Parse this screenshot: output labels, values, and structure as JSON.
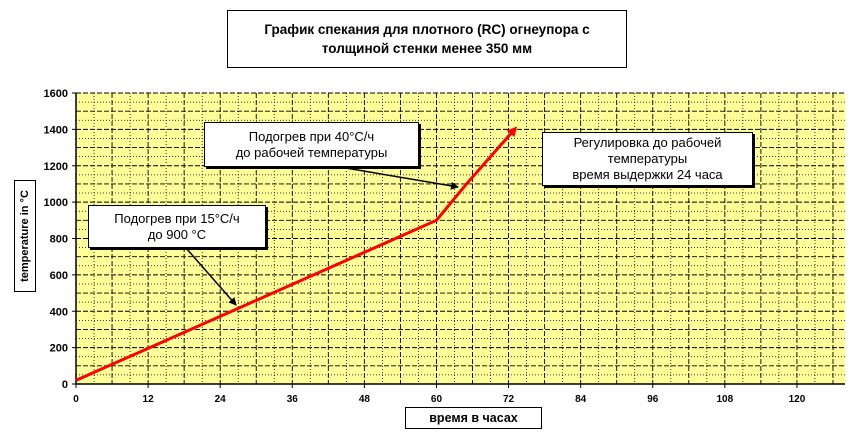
{
  "chart_data": {
    "type": "line",
    "title": "График спекания для плотного (RC) огнеупора с толщиной стенки менее 350 мм",
    "xlabel": "время в часах",
    "ylabel": "temperature in °C",
    "xlim": [
      0,
      128
    ],
    "ylim": [
      0,
      1600
    ],
    "xticks": [
      "0",
      "12",
      "24",
      "36",
      "48",
      "60",
      "72",
      "84",
      "96",
      "108",
      "120"
    ],
    "yticks": [
      "0",
      "200",
      "400",
      "600",
      "800",
      "1000",
      "1200",
      "1400",
      "1600"
    ],
    "grid": true,
    "background": "#FFFF99",
    "series": [
      {
        "x": [
          0,
          60,
          65,
          73
        ],
        "y": [
          20,
          900,
          1100,
          1400
        ],
        "color": "#FF0000"
      }
    ],
    "annotations": [
      {
        "lines": [
          "Подогрев при 15°C/ч",
          "до 900 °C"
        ]
      },
      {
        "lines": [
          "Подогрев при 40°C/ч",
          "до рабочей температуры"
        ]
      },
      {
        "lines": [
          "Регулировка до рабочей",
          "температуры",
          "время выдержки 24 часа"
        ]
      }
    ]
  }
}
